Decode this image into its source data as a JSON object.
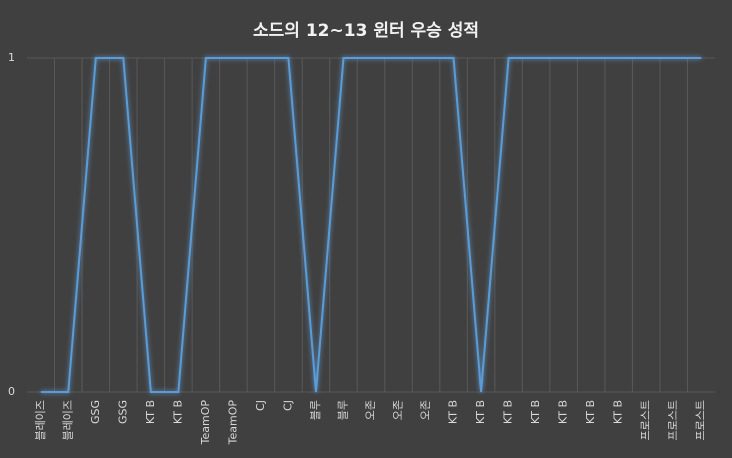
{
  "chart_data": {
    "type": "line",
    "title": "소드의 12~13 윈터 우승 성적",
    "categories": [
      "블레이즈",
      "블레이즈",
      "GSG",
      "GSG",
      "KT B",
      "KT B",
      "TeamOP",
      "TeamOP",
      "CJ",
      "CJ",
      "블루",
      "블루",
      "오존",
      "오존",
      "오존",
      "KT B",
      "KT B",
      "KT B",
      "KT B",
      "KT B",
      "KT B",
      "KT B",
      "프로스트",
      "프로스트",
      "프로스트"
    ],
    "values": [
      0,
      0,
      1,
      1,
      0,
      0,
      1,
      1,
      1,
      1,
      0,
      1,
      1,
      1,
      1,
      1,
      0,
      1,
      1,
      1,
      1,
      1,
      1,
      1,
      1
    ],
    "color": "#5b9bd5",
    "ylim": [
      0,
      1
    ],
    "yticks": [
      0,
      1
    ],
    "grid": true
  }
}
